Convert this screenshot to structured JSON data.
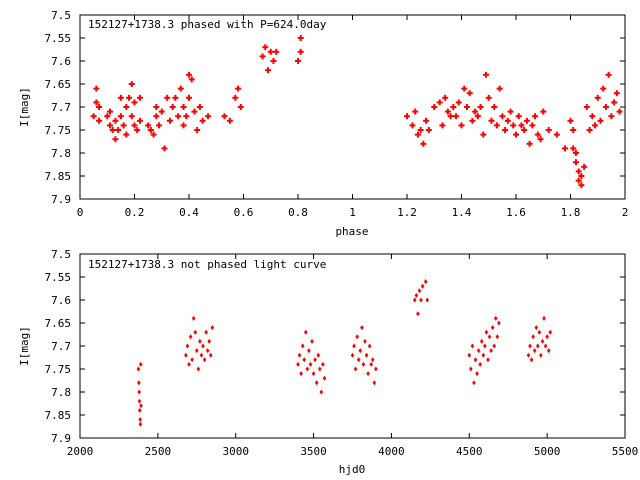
{
  "chart_data": [
    {
      "type": "scatter",
      "title": "152127+1738.3 phased with P=624.0day",
      "xlabel": "phase",
      "ylabel": "I[mag]",
      "xlim": [
        0,
        2
      ],
      "ylim": [
        7.5,
        7.9
      ],
      "y_inverted": true,
      "x_ticks": [
        0,
        0.2,
        0.4,
        0.6,
        0.8,
        1,
        1.2,
        1.4,
        1.6,
        1.8,
        2
      ],
      "x_tick_labels": [
        "0",
        "0.2",
        "0.4",
        "0.6",
        "0.8",
        "1",
        "1.2",
        "1.4",
        "1.6",
        "1.8",
        "2"
      ],
      "y_ticks": [
        7.5,
        7.55,
        7.6,
        7.65,
        7.7,
        7.75,
        7.8,
        7.85,
        7.9
      ],
      "y_tick_labels": [
        "7.5",
        "7.55",
        "7.6",
        "7.65",
        "7.7",
        "7.75",
        "7.8",
        "7.85",
        "7.9"
      ],
      "grid": false,
      "marker": "plus",
      "color": "#ff0000",
      "series": [
        {
          "x": [
            0.05,
            0.06,
            0.06,
            0.07,
            0.07,
            0.1,
            0.11,
            0.11,
            0.12,
            0.13,
            0.13,
            0.14,
            0.15,
            0.15,
            0.16,
            0.17,
            0.17,
            0.18,
            0.19,
            0.19,
            0.2,
            0.2,
            0.21,
            0.22,
            0.22,
            0.25,
            0.26,
            0.27,
            0.28,
            0.28,
            0.29,
            0.3,
            0.31,
            0.32,
            0.33,
            0.34,
            0.35,
            0.36,
            0.37,
            0.38,
            0.38,
            0.39,
            0.4,
            0.4,
            0.41,
            0.42,
            0.43,
            0.44,
            0.45,
            0.47,
            0.53,
            0.55,
            0.57,
            0.58,
            0.59,
            0.67,
            0.68,
            0.69,
            0.7,
            0.71,
            0.72,
            0.8,
            0.81,
            0.81,
            1.2,
            1.22,
            1.23,
            1.24,
            1.25,
            1.26,
            1.27,
            1.28,
            1.3,
            1.32,
            1.33,
            1.34,
            1.35,
            1.36,
            1.37,
            1.38,
            1.39,
            1.4,
            1.41,
            1.42,
            1.43,
            1.44,
            1.45,
            1.46,
            1.47,
            1.48,
            1.49,
            1.5,
            1.51,
            1.52,
            1.53,
            1.54,
            1.55,
            1.56,
            1.57,
            1.58,
            1.59,
            1.6,
            1.61,
            1.62,
            1.63,
            1.64,
            1.65,
            1.66,
            1.67,
            1.68,
            1.69,
            1.7,
            1.72,
            1.75,
            1.78,
            1.8,
            1.81,
            1.81,
            1.82,
            1.82,
            1.83,
            1.83,
            1.84,
            1.84,
            1.85,
            1.86,
            1.87,
            1.88,
            1.89,
            1.9,
            1.91,
            1.92,
            1.93,
            1.94,
            1.95,
            1.96,
            1.97,
            1.98
          ],
          "y": [
            7.72,
            7.69,
            7.66,
            7.73,
            7.7,
            7.72,
            7.74,
            7.71,
            7.75,
            7.73,
            7.77,
            7.75,
            7.68,
            7.72,
            7.74,
            7.7,
            7.76,
            7.68,
            7.65,
            7.72,
            7.69,
            7.74,
            7.75,
            7.68,
            7.73,
            7.74,
            7.75,
            7.76,
            7.72,
            7.7,
            7.74,
            7.71,
            7.79,
            7.68,
            7.73,
            7.7,
            7.68,
            7.72,
            7.66,
            7.7,
            7.74,
            7.72,
            7.63,
            7.68,
            7.64,
            7.71,
            7.75,
            7.7,
            7.73,
            7.72,
            7.72,
            7.73,
            7.68,
            7.66,
            7.7,
            7.59,
            7.57,
            7.62,
            7.58,
            7.6,
            7.58,
            7.6,
            7.55,
            7.58,
            7.72,
            7.74,
            7.71,
            7.76,
            7.75,
            7.78,
            7.73,
            7.75,
            7.7,
            7.69,
            7.74,
            7.68,
            7.71,
            7.72,
            7.7,
            7.72,
            7.69,
            7.74,
            7.66,
            7.7,
            7.67,
            7.73,
            7.71,
            7.72,
            7.7,
            7.76,
            7.63,
            7.68,
            7.73,
            7.7,
            7.74,
            7.66,
            7.72,
            7.75,
            7.73,
            7.71,
            7.74,
            7.76,
            7.72,
            7.74,
            7.75,
            7.73,
            7.78,
            7.74,
            7.72,
            7.76,
            7.77,
            7.71,
            7.75,
            7.76,
            7.79,
            7.73,
            7.75,
            7.79,
            7.8,
            7.82,
            7.84,
            7.86,
            7.85,
            7.87,
            7.83,
            7.7,
            7.75,
            7.72,
            7.74,
            7.68,
            7.73,
            7.66,
            7.7,
            7.63,
            7.72,
            7.69,
            7.67,
            7.71
          ]
        }
      ]
    },
    {
      "type": "scatter",
      "title": "152127+1738.3 not phased light curve",
      "xlabel": "hjd0",
      "ylabel": "I[mag]",
      "xlim": [
        2000,
        5500
      ],
      "ylim": [
        7.5,
        7.9
      ],
      "y_inverted": true,
      "x_ticks": [
        2000,
        2500,
        3000,
        3500,
        4000,
        4500,
        5000,
        5500
      ],
      "x_tick_labels": [
        "2000",
        "2500",
        "3000",
        "3500",
        "4000",
        "4500",
        "5000",
        "5500"
      ],
      "y_ticks": [
        7.5,
        7.55,
        7.6,
        7.65,
        7.7,
        7.75,
        7.8,
        7.85,
        7.9
      ],
      "y_tick_labels": [
        "7.5",
        "7.55",
        "7.6",
        "7.65",
        "7.7",
        "7.75",
        "7.8",
        "7.85",
        "7.9"
      ],
      "grid": false,
      "marker": "diamond",
      "color": "#ff0000",
      "series": [
        {
          "x": [
            2375,
            2378,
            2380,
            2382,
            2384,
            2386,
            2388,
            2390,
            2392,
            2680,
            2690,
            2700,
            2710,
            2720,
            2730,
            2740,
            2750,
            2760,
            2770,
            2780,
            2790,
            2800,
            2810,
            2820,
            2830,
            2840,
            2850,
            3400,
            3410,
            3420,
            3430,
            3440,
            3450,
            3460,
            3470,
            3480,
            3490,
            3500,
            3510,
            3520,
            3530,
            3540,
            3550,
            3560,
            3570,
            3750,
            3760,
            3770,
            3780,
            3790,
            3800,
            3810,
            3820,
            3830,
            3840,
            3850,
            3860,
            3870,
            3880,
            3890,
            3900,
            4150,
            4160,
            4170,
            4180,
            4190,
            4200,
            4220,
            4230,
            4500,
            4510,
            4520,
            4530,
            4540,
            4550,
            4560,
            4570,
            4580,
            4590,
            4600,
            4610,
            4620,
            4630,
            4640,
            4650,
            4660,
            4670,
            4680,
            4690,
            4880,
            4890,
            4900,
            4910,
            4920,
            4930,
            4940,
            4950,
            4960,
            4970,
            4980,
            4990,
            5000,
            5010,
            5020
          ],
          "y": [
            7.75,
            7.78,
            7.8,
            7.82,
            7.84,
            7.86,
            7.87,
            7.74,
            7.83,
            7.72,
            7.7,
            7.74,
            7.68,
            7.73,
            7.64,
            7.67,
            7.71,
            7.75,
            7.69,
            7.72,
            7.7,
            7.73,
            7.67,
            7.71,
            7.69,
            7.72,
            7.66,
            7.74,
            7.72,
            7.76,
            7.7,
            7.73,
            7.67,
            7.75,
            7.71,
            7.74,
            7.69,
            7.76,
            7.73,
            7.78,
            7.72,
            7.75,
            7.8,
            7.74,
            7.77,
            7.72,
            7.7,
            7.75,
            7.68,
            7.73,
            7.71,
            7.66,
            7.74,
            7.69,
            7.72,
            7.76,
            7.7,
            7.74,
            7.73,
            7.78,
            7.75,
            7.6,
            7.59,
            7.63,
            7.58,
            7.6,
            7.57,
            7.56,
            7.6,
            7.72,
            7.75,
            7.7,
            7.78,
            7.73,
            7.76,
            7.71,
            7.74,
            7.69,
            7.72,
            7.7,
            7.67,
            7.73,
            7.68,
            7.71,
            7.66,
            7.7,
            7.64,
            7.68,
            7.65,
            7.72,
            7.7,
            7.73,
            7.68,
            7.71,
            7.66,
            7.7,
            7.67,
            7.72,
            7.69,
            7.64,
            7.7,
            7.68,
            7.71,
            7.67
          ]
        }
      ]
    }
  ]
}
